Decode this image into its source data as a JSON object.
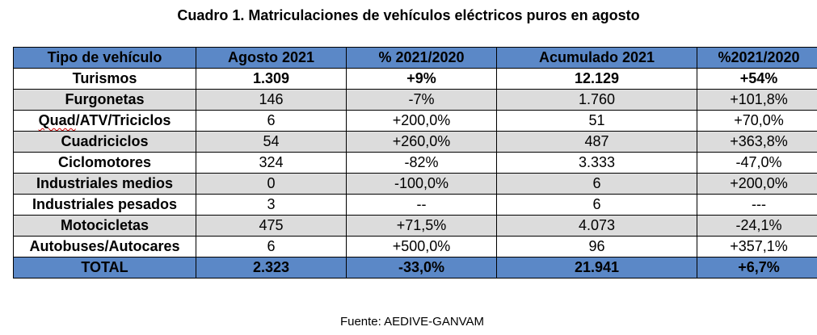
{
  "title": "Cuadro 1. Matriculaciones de vehículos eléctricos puros en agosto",
  "headers": [
    "Tipo de vehículo",
    "Agosto 2021",
    "% 2021/2020",
    "Acumulado 2021",
    "%2021/2020"
  ],
  "rows": [
    {
      "label": "Turismos",
      "values": [
        "1.309",
        "+9%",
        "12.129",
        "+54%"
      ]
    },
    {
      "label": "Furgonetas",
      "values": [
        "146",
        "-7%",
        "1.760",
        "+101,8%"
      ]
    },
    {
      "label_prefix": "Quad",
      "label_rest": "/ATV/Triciclos",
      "values": [
        "6",
        "+200,0%",
        "51",
        "+70,0%"
      ]
    },
    {
      "label": "Cuadriciclos",
      "values": [
        "54",
        "+260,0%",
        "487",
        "+363,8%"
      ]
    },
    {
      "label": "Ciclomotores",
      "values": [
        "324",
        "-82%",
        "3.333",
        "-47,0%"
      ]
    },
    {
      "label": "Industriales medios",
      "values": [
        "0",
        "-100,0%",
        "6",
        "+200,0%"
      ]
    },
    {
      "label": "Industriales pesados",
      "values": [
        "3",
        "--",
        "6",
        "---"
      ]
    },
    {
      "label": "Motocicletas",
      "values": [
        "475",
        "+71,5%",
        "4.073",
        "-24,1%"
      ]
    },
    {
      "label": "Autobuses/Autocares",
      "values": [
        "6",
        "+500,0%",
        "96",
        "+357,1%"
      ]
    }
  ],
  "total": {
    "label": "TOTAL",
    "values": [
      "2.323",
      "-33,0%",
      "21.941",
      "+6,7%"
    ]
  },
  "source": "Fuente: AEDIVE-GANVAM",
  "colors": {
    "header_fill": "#5b88c7",
    "alt_row_fill": "#dcdcdc"
  }
}
